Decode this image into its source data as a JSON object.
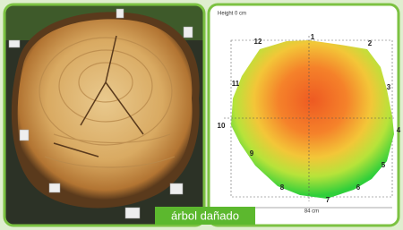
{
  "photo": {
    "caption": "árbol dañado"
  },
  "tomogram": {
    "height_label": "Height 0 cm",
    "width_label": "84 cm",
    "sensors": [
      "1",
      "2",
      "3",
      "4",
      "5",
      "6",
      "7",
      "8",
      "9",
      "10",
      "11",
      "12"
    ]
  }
}
